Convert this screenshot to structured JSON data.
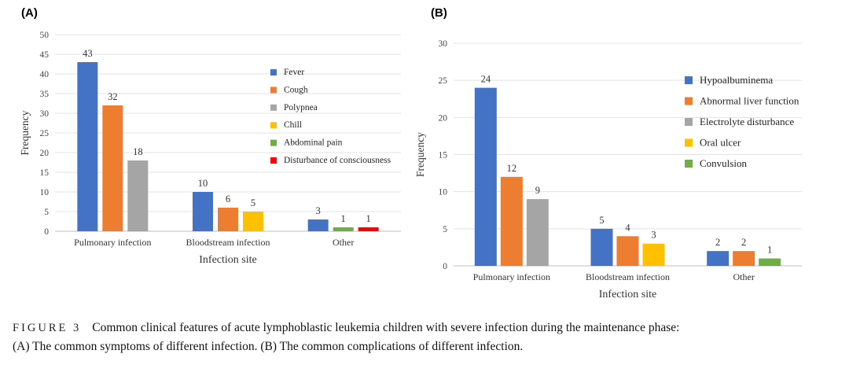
{
  "caption": {
    "label": "FIGURE 3",
    "line1": "Common clinical features of acute lymphoblastic leukemia children with severe infection during the maintenance phase:",
    "line2": "(A) The common symptoms of different infection. (B) The common complications of different infection."
  },
  "chart_data": [
    {
      "panel_label": "(A)",
      "type": "bar",
      "title": "",
      "xlabel": "Infection site",
      "ylabel": "Frequency",
      "ylim": [
        0,
        50
      ],
      "yticks": [
        0,
        5,
        10,
        15,
        20,
        25,
        30,
        35,
        40,
        45,
        50
      ],
      "grid": true,
      "legend_position": "right",
      "categories": [
        "Pulmonary infection",
        "Bloodstream infection",
        "Other"
      ],
      "series": [
        {
          "name": "Fever",
          "color": "#4472C4",
          "values": [
            43,
            10,
            3
          ]
        },
        {
          "name": "Cough",
          "color": "#ED7D31",
          "values": [
            32,
            6,
            null
          ]
        },
        {
          "name": "Polypnea",
          "color": "#A5A5A5",
          "values": [
            18,
            null,
            null
          ]
        },
        {
          "name": "Chill",
          "color": "#FFC000",
          "values": [
            null,
            5,
            null
          ]
        },
        {
          "name": "Abdominal pain",
          "color": "#70AD47",
          "values": [
            null,
            null,
            1
          ]
        },
        {
          "name": "Disturbance of consciousness",
          "color": "#FF0000",
          "values": [
            null,
            null,
            1
          ]
        }
      ]
    },
    {
      "panel_label": "(B)",
      "type": "bar",
      "title": "",
      "xlabel": "Infection site",
      "ylabel": "Frequency",
      "ylim": [
        0,
        30
      ],
      "yticks": [
        0,
        5,
        10,
        15,
        20,
        25,
        30
      ],
      "grid": true,
      "legend_position": "right",
      "categories": [
        "Pulmonary infection",
        "Bloodstream infection",
        "Other"
      ],
      "series": [
        {
          "name": "Hypoalbuminema",
          "color": "#4472C4",
          "values": [
            24,
            5,
            2
          ]
        },
        {
          "name": "Abnormal liver function",
          "color": "#ED7D31",
          "values": [
            12,
            4,
            2
          ]
        },
        {
          "name": "Electrolyte disturbance",
          "color": "#A5A5A5",
          "values": [
            9,
            null,
            null
          ]
        },
        {
          "name": "Oral ulcer",
          "color": "#FFC000",
          "values": [
            null,
            3,
            null
          ]
        },
        {
          "name": "Convulsion",
          "color": "#70AD47",
          "values": [
            null,
            null,
            1
          ]
        }
      ]
    }
  ]
}
